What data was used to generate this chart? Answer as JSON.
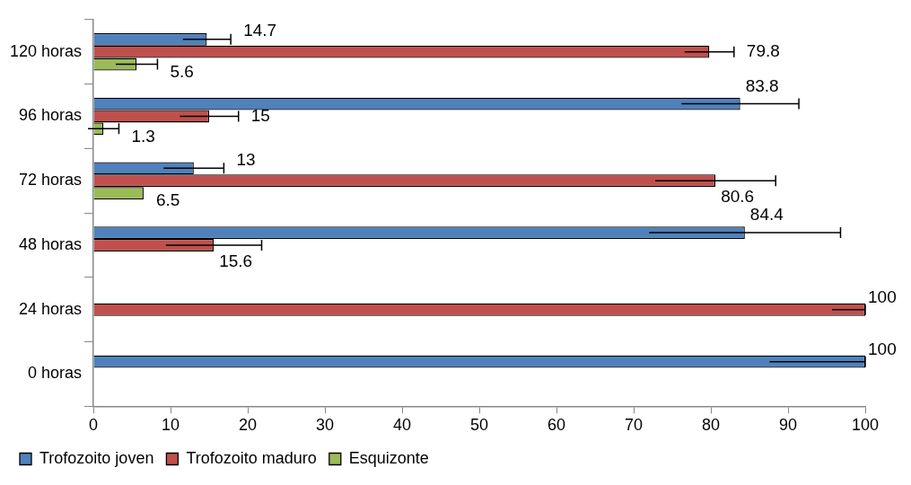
{
  "chart_data": {
    "type": "bar",
    "orientation": "horizontal",
    "categories": [
      "120 horas",
      "96 horas",
      "72 horas",
      "48 horas",
      "24 horas",
      "0 horas"
    ],
    "series": [
      {
        "name": "Trofozoito joven",
        "color": "#4f81bd",
        "values": [
          14.7,
          83.8,
          13,
          84.4,
          0,
          100
        ],
        "errors": [
          3.1,
          7.6,
          3.9,
          12.4,
          null,
          [
            87.6,
            100
          ]
        ],
        "value_labels": [
          "14.7",
          "83.8",
          "13",
          "84.4",
          null,
          "100"
        ]
      },
      {
        "name": "Trofozoito maduro",
        "color": "#c0504d",
        "values": [
          79.8,
          15,
          80.6,
          15.6,
          100,
          0
        ],
        "errors": [
          3.2,
          3.8,
          7.8,
          6.2,
          [
            95.7,
            100
          ],
          null
        ],
        "value_labels": [
          "79.8",
          "15",
          "80.6",
          "15.6",
          "100",
          null
        ]
      },
      {
        "name": "Esquizonte",
        "color": "#9bbb59",
        "values": [
          5.6,
          1.3,
          6.5,
          0,
          0,
          0
        ],
        "errors": [
          2.7,
          2.0,
          null,
          null,
          null,
          null
        ],
        "value_labels": [
          "5.6",
          "1.3",
          "6.5",
          null,
          null,
          null
        ]
      }
    ],
    "xlim": [
      0,
      100
    ],
    "xticks": [
      0,
      10,
      20,
      30,
      40,
      50,
      60,
      70,
      80,
      90,
      100
    ],
    "grid": false,
    "legend": "bottom left"
  }
}
